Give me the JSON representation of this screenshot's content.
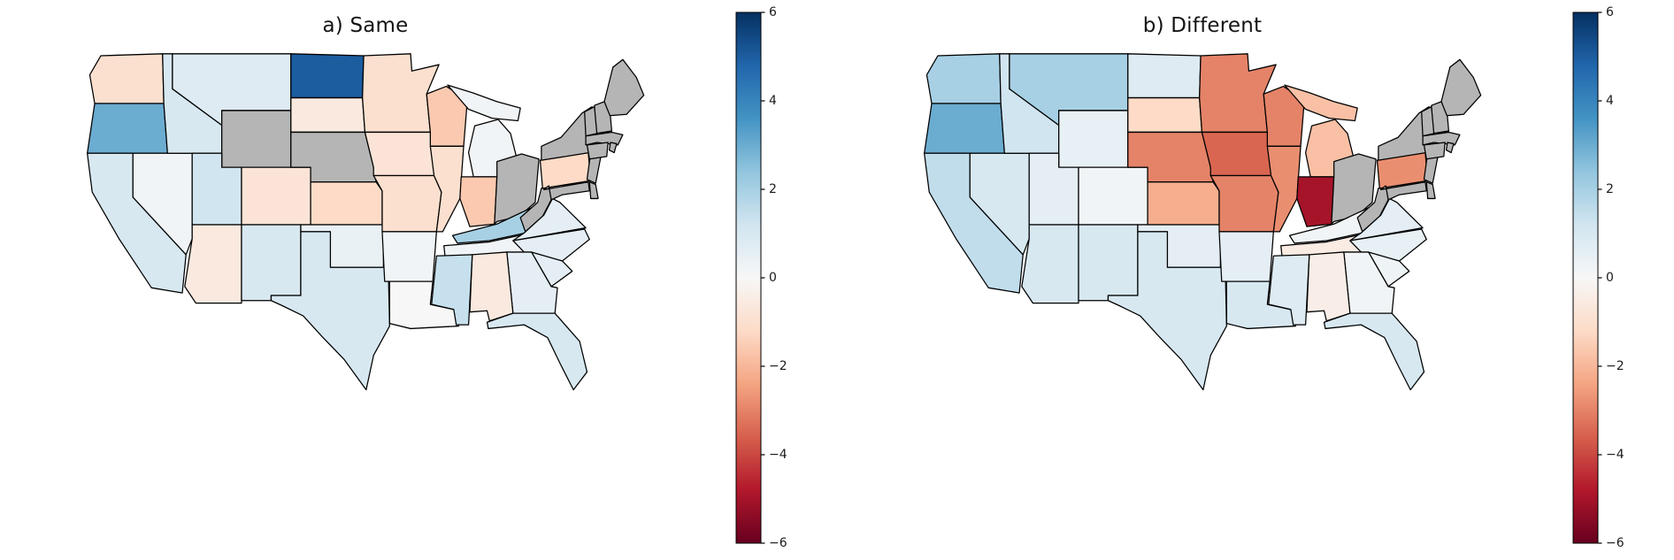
{
  "figure": {
    "background_color": "#ffffff",
    "panels": [
      {
        "id": "a",
        "title": "a) Same"
      },
      {
        "id": "b",
        "title": "b) Different"
      }
    ]
  },
  "colorbar": {
    "min": -6,
    "max": 6,
    "ticks": [
      6,
      4,
      2,
      0,
      -2,
      -4,
      -6
    ],
    "tick_labels": [
      "6",
      "4",
      "2",
      "0",
      "−2",
      "−4",
      "−6"
    ],
    "colormap": "RdBu",
    "colormap_stops_low_to_high": [
      "#67001f",
      "#b2182b",
      "#d6604d",
      "#f4a582",
      "#fddbc7",
      "#f7f7f7",
      "#d1e5f0",
      "#92c5de",
      "#4393c3",
      "#2166ac",
      "#053061"
    ]
  },
  "map_style": {
    "missing_color": "#b5b5b5",
    "border_color": "#000000",
    "water_background": "#ffffff"
  },
  "chart_data": {
    "type": "choropleth",
    "region": "Contiguous United States",
    "value_range": [
      -6,
      6
    ],
    "colormap": "RdBu",
    "legend_position": "right-vertical-colorbar",
    "maps": [
      {
        "panel": "a",
        "title": "a) Same",
        "state_values": {
          "WA": -1.0,
          "OR": 3.0,
          "CA": 1.0,
          "NV": 0.2,
          "ID": 1.0,
          "MT": 0.8,
          "UT": 1.2,
          "CO": -0.8,
          "AZ": -0.6,
          "NM": 1.0,
          "ND": 5.0,
          "SD": -0.6,
          "KS": -1.2,
          "OK": 0.4,
          "TX": 1.0,
          "MN": -1.0,
          "IA": -0.8,
          "MO": -1.0,
          "AR": 0.2,
          "LA": 0.0,
          "WI": -1.6,
          "IL": -1.0,
          "MI": 0.2,
          "IN": -1.6,
          "KY": 2.0,
          "TN": 0.2,
          "MS": 1.4,
          "AL": -0.6,
          "GA": 0.6,
          "FL": 1.0,
          "SC": 0.6,
          "NC": 0.6,
          "VA": 0.6,
          "PA": -1.2
        },
        "missing_states": [
          "WY",
          "NE",
          "OH",
          "WV",
          "NY",
          "NJ",
          "DE",
          "MD",
          "CT",
          "RI",
          "MA",
          "VT",
          "NH",
          "ME"
        ]
      },
      {
        "panel": "b",
        "title": "b) Different",
        "state_values": {
          "WA": 2.0,
          "OR": 3.0,
          "CA": 1.5,
          "NV": 1.0,
          "ID": 1.2,
          "MT": 2.0,
          "WY": 0.5,
          "UT": 0.6,
          "CO": 0.2,
          "AZ": 1.0,
          "NM": 1.0,
          "ND": 0.8,
          "SD": -1.2,
          "NE": -3.0,
          "KS": -2.2,
          "OK": 0.6,
          "TX": 1.0,
          "MN": -3.0,
          "IA": -3.5,
          "MO": -3.0,
          "AR": 0.6,
          "LA": 1.0,
          "WI": -3.0,
          "IL": -2.8,
          "MI": -1.8,
          "IN": -5.0,
          "KY": 0.2,
          "TN": -0.5,
          "MS": 0.8,
          "AL": -0.4,
          "GA": 0.2,
          "FL": 1.0,
          "SC": 0.3,
          "NC": 0.5,
          "VA": 0.6,
          "PA": -2.8
        },
        "missing_states": [
          "OH",
          "WV",
          "NY",
          "NJ",
          "DE",
          "MD",
          "CT",
          "RI",
          "MA",
          "VT",
          "NH",
          "ME"
        ]
      }
    ]
  }
}
